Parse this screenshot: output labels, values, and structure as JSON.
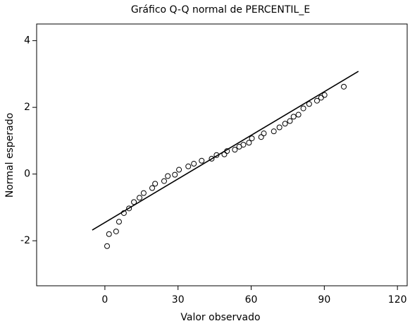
{
  "chart_data": {
    "type": "scatter",
    "title": "Gráfico Q-Q normal de PERCENTIL_E",
    "x_label": "Valor observado",
    "y_label": "Normal esperado",
    "xlim": [
      -28,
      124
    ],
    "ylim": [
      -3.35,
      4.5
    ],
    "xticks": [
      0,
      30,
      60,
      90,
      120
    ],
    "yticks": [
      -2,
      0,
      2,
      4
    ],
    "grid": false,
    "color": "#000000",
    "x": [
      0.9,
      1.7,
      4.6,
      5.8,
      7.8,
      9.9,
      11.9,
      14.2,
      15.9,
      19.4,
      20.6,
      24.3,
      25.8,
      28.7,
      30.4,
      34.2,
      36.5,
      39.7,
      43.8,
      45.8,
      49.0,
      50.1,
      53.3,
      55.1,
      56.8,
      59.1,
      60.3,
      64.1,
      65.2,
      69.3,
      71.6,
      73.9,
      75.9,
      77.4,
      79.4,
      81.4,
      83.8,
      87.0,
      88.7,
      90.1,
      98.0
    ],
    "values": [
      -2.16,
      -1.8,
      -1.72,
      -1.43,
      -1.17,
      -1.03,
      -0.84,
      -0.71,
      -0.57,
      -0.42,
      -0.29,
      -0.21,
      -0.06,
      -0.02,
      0.13,
      0.23,
      0.31,
      0.4,
      0.46,
      0.57,
      0.59,
      0.69,
      0.73,
      0.82,
      0.88,
      0.94,
      1.07,
      1.11,
      1.22,
      1.28,
      1.4,
      1.51,
      1.59,
      1.72,
      1.78,
      1.97,
      2.1,
      2.2,
      2.29,
      2.37,
      2.62
    ],
    "reference_line": {
      "x": [
        -5.2,
        104
      ],
      "y": [
        -1.68,
        3.08
      ]
    }
  }
}
